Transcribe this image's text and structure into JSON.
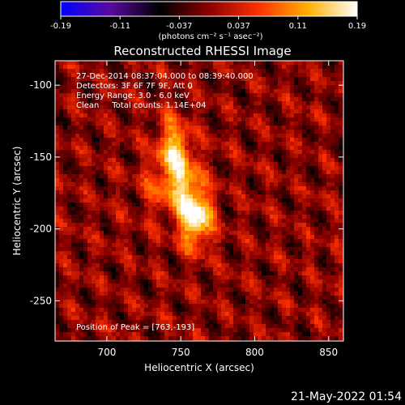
{
  "colorbar": {
    "ticks": [
      "-0.19",
      "-0.11",
      "-0.037",
      "0.037",
      "0.11",
      "0.19"
    ],
    "unit_label": "(photons cm⁻² s⁻¹ asec⁻²)",
    "range": [
      -0.19,
      0.19
    ]
  },
  "chart_data": {
    "type": "heatmap",
    "title": "Reconstructed RHESSI Image",
    "xlabel": "Heliocentric X (arcsec)",
    "ylabel": "Heliocentric Y (arcsec)",
    "xlim": [
      665,
      860
    ],
    "ylim": [
      -278,
      -83
    ],
    "xticks": [
      700,
      750,
      800,
      850
    ],
    "yticks": [
      -100,
      -150,
      -200,
      -250
    ],
    "colorscale": [
      "#0000ff",
      "#5a0aa0",
      "#000000",
      "#8a0000",
      "#ff3000",
      "#ffb000",
      "#ffffff"
    ],
    "peak": {
      "x": 763,
      "y": -193
    },
    "sources": [
      {
        "x": 760,
        "y": -192,
        "intensity": 0.19
      },
      {
        "x": 745,
        "y": -143,
        "intensity": 0.13
      },
      {
        "x": 752,
        "y": -168,
        "intensity": 0.11
      },
      {
        "x": 735,
        "y": -170,
        "intensity": 0.06
      }
    ],
    "annotations": [
      "27-Dec-2014 08:37:04.000 to 08:39:40.000",
      "Detectors: 3F 6F 7F 9F, Att 0",
      "Energy Range: 3.0 - 6.0 keV",
      "Clean     Total counts: 1.14E+04",
      "Position of Peak = [763,-193]"
    ]
  },
  "footer": {
    "date": "21-May-2022 01:54"
  }
}
